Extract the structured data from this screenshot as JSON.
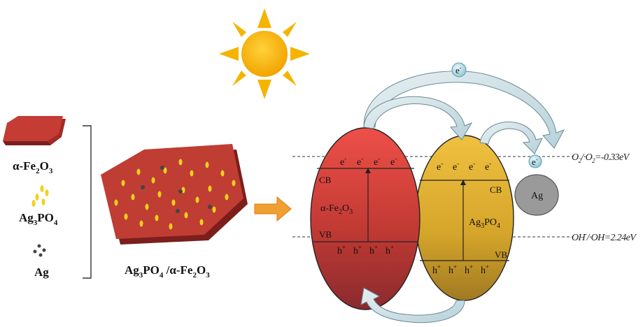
{
  "legend": {
    "fe2o3": {
      "main": "α-Fe",
      "s1": "2",
      "mid": "O",
      "s2": "3"
    },
    "ag3po4": {
      "main": "Ag",
      "s1": "3",
      "rest": "PO",
      "s2": "4"
    },
    "ag": "Ag"
  },
  "composite": {
    "a": "Ag",
    "s1": "3",
    "b": "PO",
    "s2": "4",
    "c": " /α-Fe",
    "s3": "2",
    "d": "O",
    "s4": "3"
  },
  "electron": "e",
  "electron_sup": "-",
  "hole": "h",
  "hole_sup": "+",
  "red_particle": {
    "cb": "CB",
    "vb": "VB",
    "name": {
      "a": "α-Fe",
      "s1": "2",
      "b": "O",
      "s2": "3"
    }
  },
  "yellow_particle": {
    "cb": "CB",
    "vb": "VB",
    "name": {
      "a": "Ag",
      "s1": "3",
      "b": "PO",
      "s2": "4"
    }
  },
  "ag_particle": "Ag",
  "potentials": {
    "o2": {
      "a": "O",
      "s1": "2",
      "b": "/·O",
      "s2": "2",
      "c": "=-0.33eV"
    },
    "oh": {
      "a": "OH",
      "s1": "-",
      "b": "/·OH=2.24eV"
    }
  },
  "colors": {
    "hematite": "#b83a32",
    "ag3po4": "#d4a52a",
    "silver": "#9a9a9a",
    "sun": "#f5b400",
    "electron": "#a8d6e0",
    "arrow": "#cfe0e6",
    "orange_arrow": "#f0a030"
  }
}
